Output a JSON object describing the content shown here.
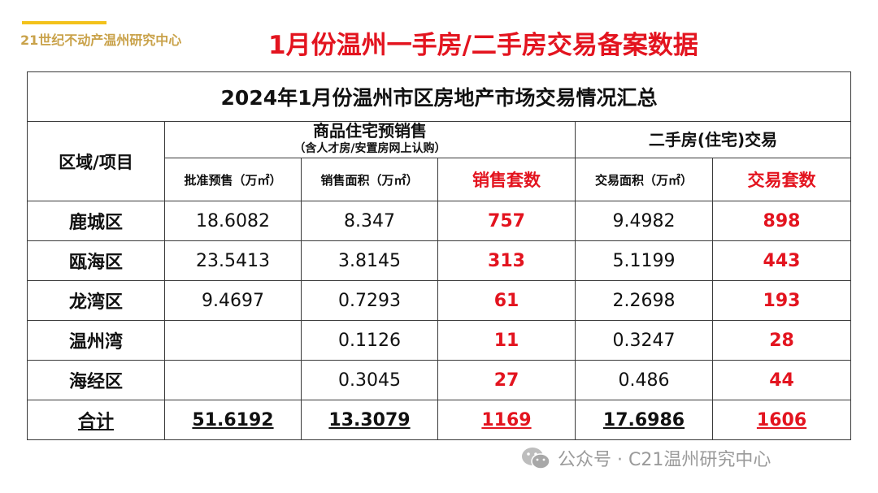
{
  "header": {
    "brand": "21世纪不动产温州研究中心",
    "title": "1月份温州一手房/二手房交易备案数据"
  },
  "table": {
    "title": "2024年1月份温州市区房地产市场交易情况汇总",
    "area_header": "区域/项目",
    "group_new": "商品住宅预销售",
    "group_new_note": "（含人才房/安置房网上认购）",
    "group_second": "二手房(住宅)交易",
    "col_presale": "批准预售（万㎡）",
    "col_sales_area": "销售面积（万㎡）",
    "col_sales_units": "销售套数",
    "col_trade_area": "交易面积（万㎡）",
    "col_trade_units": "交易套数",
    "rows": [
      {
        "area": "鹿城区",
        "presale": "18.6082",
        "sales_area": "8.347",
        "sales_units": "757",
        "trade_area": "9.4982",
        "trade_units": "898"
      },
      {
        "area": "瓯海区",
        "presale": "23.5413",
        "sales_area": "3.8145",
        "sales_units": "313",
        "trade_area": "5.1199",
        "trade_units": "443"
      },
      {
        "area": "龙湾区",
        "presale": "9.4697",
        "sales_area": "0.7293",
        "sales_units": "61",
        "trade_area": "2.2698",
        "trade_units": "193"
      },
      {
        "area": "温州湾",
        "presale": "",
        "sales_area": "0.1126",
        "sales_units": "11",
        "trade_area": "0.3247",
        "trade_units": "28"
      },
      {
        "area": "海经区",
        "presale": "",
        "sales_area": "0.3045",
        "sales_units": "27",
        "trade_area": "0.486",
        "trade_units": "44"
      }
    ],
    "total": {
      "area": "合计",
      "presale": "51.6192",
      "sales_area": "13.3079",
      "sales_units": "1169",
      "trade_area": "17.6986",
      "trade_units": "1606"
    }
  },
  "watermark": {
    "text": "公众号 · C21温州研究中心",
    "icon": "wechat-icon"
  },
  "colors": {
    "accent_red": "#e3141f",
    "brand_gold": "#c9a24a",
    "accent_yellow": "#f3c21b"
  }
}
